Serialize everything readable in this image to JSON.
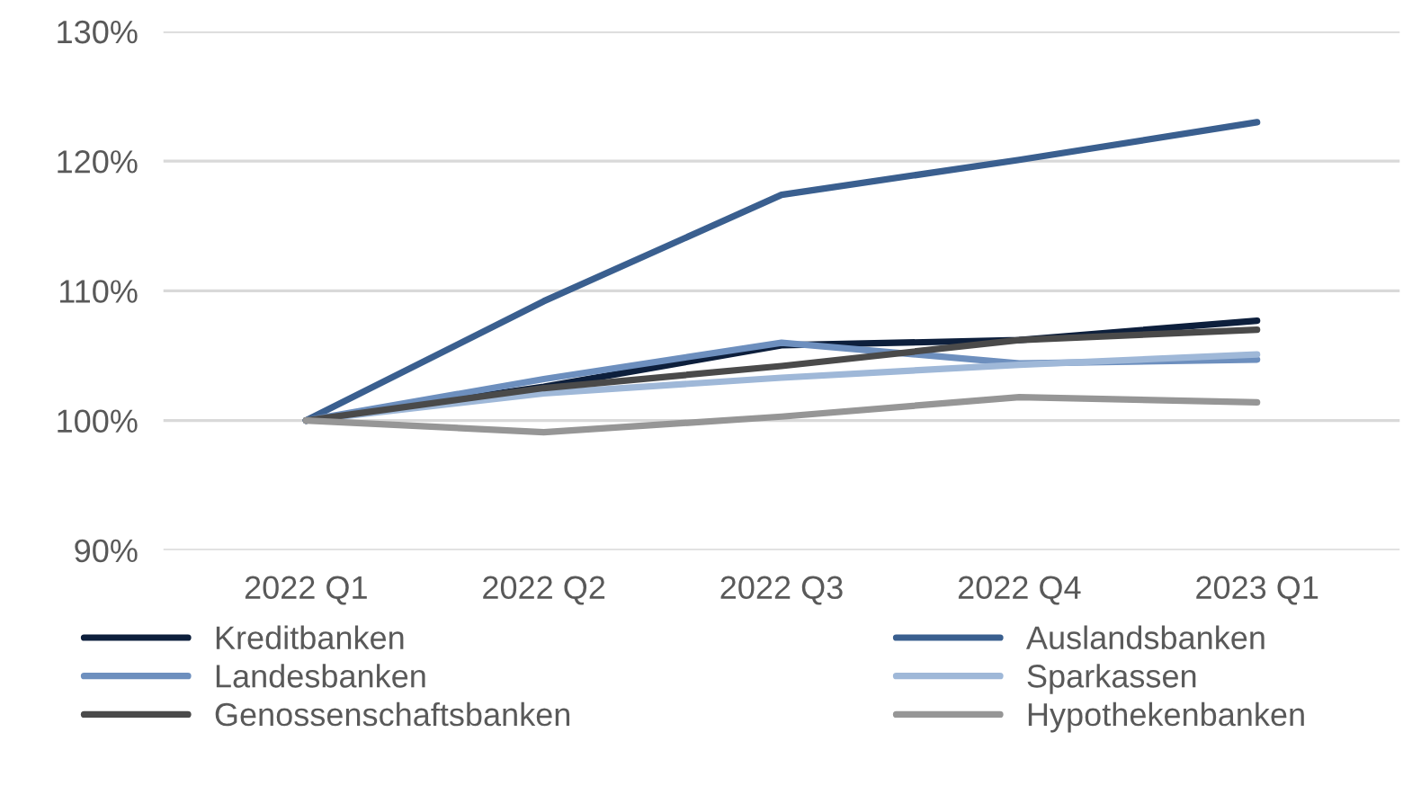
{
  "chart_data": {
    "type": "line",
    "categories": [
      "2022 Q1",
      "2022 Q2",
      "2022 Q3",
      "2022 Q4",
      "2023 Q1"
    ],
    "series": [
      {
        "name": "Kreditbanken",
        "color": "#0d1f3c",
        "values": [
          100,
          102.6,
          105.8,
          106.2,
          107.7
        ]
      },
      {
        "name": "Auslandsbanken",
        "color": "#3a5f8f",
        "values": [
          100,
          109.2,
          117.4,
          120.1,
          123.0
        ]
      },
      {
        "name": "Landesbanken",
        "color": "#6d8fbe",
        "values": [
          100,
          103.2,
          106.0,
          104.4,
          104.7
        ]
      },
      {
        "name": "Sparkassen",
        "color": "#9fb8d8",
        "values": [
          100,
          102.1,
          103.3,
          104.3,
          105.1
        ]
      },
      {
        "name": "Genossenschaftsbanken",
        "color": "#4a4a4a",
        "values": [
          100,
          102.5,
          104.2,
          106.2,
          107.0
        ]
      },
      {
        "name": "Hypothekenbanken",
        "color": "#969696",
        "values": [
          100,
          99.1,
          100.3,
          101.8,
          101.4
        ]
      }
    ],
    "ylim": [
      90,
      130
    ],
    "yticks": [
      {
        "value": 90,
        "label": "90%"
      },
      {
        "value": 100,
        "label": "100%"
      },
      {
        "value": 110,
        "label": "110%"
      },
      {
        "value": 120,
        "label": "120%"
      },
      {
        "value": 130,
        "label": "130%"
      }
    ],
    "grid": "y",
    "legend": "bottom",
    "marker": "none",
    "line_style": "solid"
  }
}
